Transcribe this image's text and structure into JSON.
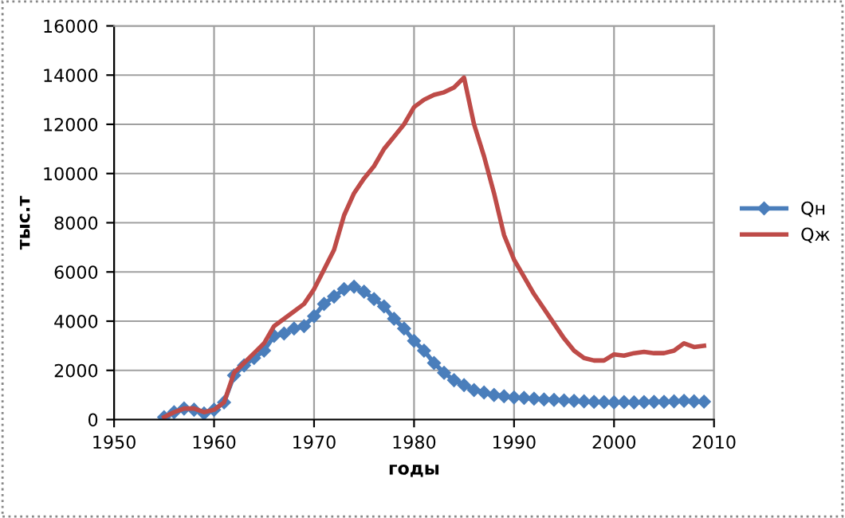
{
  "chart_data": {
    "type": "line",
    "xlabel": "годы",
    "ylabel": "тыс.т",
    "x": [
      1955,
      1956,
      1957,
      1958,
      1959,
      1960,
      1961,
      1962,
      1963,
      1964,
      1965,
      1966,
      1967,
      1968,
      1969,
      1970,
      1971,
      1972,
      1973,
      1974,
      1975,
      1976,
      1977,
      1978,
      1979,
      1980,
      1981,
      1982,
      1983,
      1984,
      1985,
      1986,
      1987,
      1988,
      1989,
      1990,
      1991,
      1992,
      1993,
      1994,
      1995,
      1996,
      1997,
      1998,
      1999,
      2000,
      2001,
      2002,
      2003,
      2004,
      2005,
      2006,
      2007,
      2008,
      2009
    ],
    "series": [
      {
        "name": "Qн",
        "color": "#4a7ebb",
        "marker": "diamond",
        "values": [
          100,
          300,
          450,
          400,
          250,
          400,
          700,
          1800,
          2200,
          2500,
          2800,
          3400,
          3500,
          3700,
          3800,
          4200,
          4700,
          5000,
          5300,
          5400,
          5200,
          4900,
          4600,
          4100,
          3700,
          3200,
          2800,
          2300,
          1900,
          1600,
          1400,
          1200,
          1100,
          1000,
          950,
          900,
          880,
          850,
          820,
          800,
          780,
          760,
          740,
          720,
          710,
          700,
          710,
          700,
          710,
          720,
          720,
          740,
          760,
          740,
          730
        ]
      },
      {
        "name": "Qж",
        "color": "#be4b48",
        "marker": "none",
        "values": [
          100,
          300,
          450,
          450,
          300,
          400,
          700,
          1900,
          2300,
          2700,
          3100,
          3800,
          4100,
          4400,
          4700,
          5300,
          6100,
          6900,
          8300,
          9200,
          9800,
          10300,
          11000,
          11500,
          12000,
          12700,
          13000,
          13200,
          13300,
          13500,
          13900,
          12000,
          10700,
          9200,
          7500,
          6500,
          5800,
          5100,
          4500,
          3900,
          3300,
          2800,
          2500,
          2400,
          2400,
          2650,
          2600,
          2700,
          2750,
          2700,
          2700,
          2800,
          3100,
          2950,
          3000
        ]
      }
    ],
    "xlim": [
      1950,
      2010
    ],
    "xticks": [
      1950,
      1960,
      1970,
      1980,
      1990,
      2000,
      2010
    ],
    "ylim": [
      0,
      16000
    ],
    "yticks": [
      0,
      2000,
      4000,
      6000,
      8000,
      10000,
      12000,
      14000,
      16000
    ],
    "grid": true,
    "legend": "right"
  }
}
